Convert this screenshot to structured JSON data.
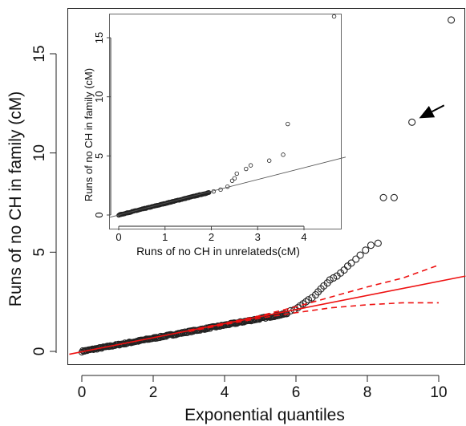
{
  "chart_data": [
    {
      "id": "main",
      "type": "scatter",
      "title": "",
      "xlabel": "Exponential quantiles",
      "ylabel": "Runs of no CH in family (cM)",
      "xlim": [
        -0.35,
        10.75
      ],
      "ylim": [
        -0.7,
        17.6
      ],
      "xticks": [
        0,
        2,
        4,
        6,
        8,
        10
      ],
      "yticks": [
        0,
        5,
        10,
        15
      ],
      "grid": false,
      "legend": "none",
      "colors": {
        "points": "#222222",
        "fit_line": "#ee1111",
        "envelope": "#ee1111",
        "arrow": "#000000"
      },
      "points_dense_trend": {
        "x_from": 0.0,
        "x_to": 5.75,
        "y_from": 0.0,
        "y_to": 1.9
      },
      "points": [
        [
          5.85,
          2.05
        ],
        [
          5.95,
          2.1
        ],
        [
          6.05,
          2.2
        ],
        [
          6.12,
          2.3
        ],
        [
          6.2,
          2.4
        ],
        [
          6.28,
          2.5
        ],
        [
          6.35,
          2.6
        ],
        [
          6.45,
          2.7
        ],
        [
          6.55,
          2.85
        ],
        [
          6.62,
          3.0
        ],
        [
          6.7,
          3.15
        ],
        [
          6.78,
          3.3
        ],
        [
          6.88,
          3.45
        ],
        [
          6.95,
          3.6
        ],
        [
          7.05,
          3.7
        ],
        [
          7.15,
          3.8
        ],
        [
          7.25,
          3.95
        ],
        [
          7.35,
          4.1
        ],
        [
          7.45,
          4.3
        ],
        [
          7.55,
          4.45
        ],
        [
          7.68,
          4.65
        ],
        [
          7.8,
          4.85
        ],
        [
          7.95,
          5.1
        ],
        [
          8.1,
          5.35
        ],
        [
          8.3,
          5.45
        ],
        [
          8.45,
          7.75
        ],
        [
          8.75,
          7.75
        ],
        [
          9.25,
          11.55
        ],
        [
          10.35,
          16.7
        ]
      ],
      "fit_line": {
        "intercept": -0.02,
        "slope": 0.355,
        "x_from": -0.35,
        "x_to": 10.75
      },
      "envelope_upper": [
        [
          3.0,
          1.07
        ],
        [
          4.0,
          1.42
        ],
        [
          5.0,
          1.8
        ],
        [
          6.0,
          2.25
        ],
        [
          7.0,
          2.75
        ],
        [
          8.0,
          3.25
        ],
        [
          9.0,
          3.7
        ],
        [
          10.0,
          4.35
        ]
      ],
      "envelope_lower": [
        [
          3.0,
          1.0
        ],
        [
          4.0,
          1.35
        ],
        [
          5.0,
          1.68
        ],
        [
          6.0,
          1.95
        ],
        [
          7.0,
          2.2
        ],
        [
          8.0,
          2.35
        ],
        [
          9.0,
          2.45
        ],
        [
          10.0,
          2.45
        ]
      ],
      "annotation": {
        "type": "arrow",
        "from": [
          10.15,
          12.4
        ],
        "to": [
          9.45,
          11.75
        ]
      }
    },
    {
      "id": "inset",
      "type": "scatter",
      "title": "",
      "xlabel": "Runs of no CH in unrelateds(cM)",
      "ylabel": "Runs of no CH in family (cM)",
      "xlim": [
        -0.2,
        4.9
      ],
      "ylim": [
        -0.6,
        18.0
      ],
      "xticks": [
        0,
        1,
        2,
        3,
        4
      ],
      "yticks": [
        0,
        5,
        10,
        15
      ],
      "grid": false,
      "legend": "none",
      "colors": {
        "points": "#222222",
        "ref_line": "#555555"
      },
      "points_dense_trend": {
        "x_from": 0.0,
        "x_to": 1.95,
        "y_from": 0.0,
        "y_to": 1.9
      },
      "points": [
        [
          2.05,
          2.0
        ],
        [
          2.2,
          2.15
        ],
        [
          2.35,
          2.4
        ],
        [
          2.45,
          2.9
        ],
        [
          2.5,
          3.1
        ],
        [
          2.55,
          3.5
        ],
        [
          2.75,
          3.9
        ],
        [
          2.85,
          4.2
        ],
        [
          3.25,
          4.6
        ],
        [
          3.55,
          5.1
        ],
        [
          3.65,
          7.7
        ],
        [
          4.65,
          16.8
        ]
      ],
      "ref_line": {
        "intercept": 0.0,
        "slope": 1.0,
        "x_from": -0.2,
        "x_to": 4.9
      }
    }
  ]
}
